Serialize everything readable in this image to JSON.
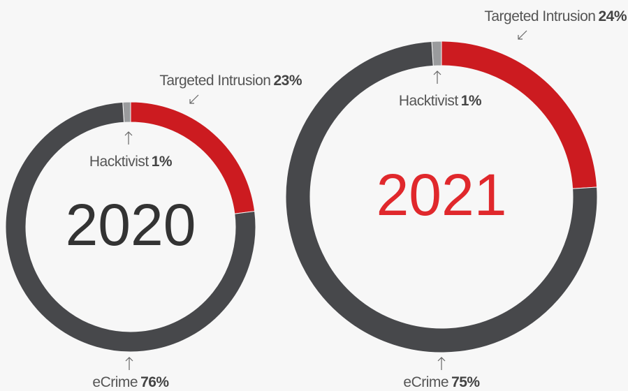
{
  "chart_data": [
    {
      "type": "donut",
      "title": "2020",
      "title_color": "#333333",
      "categories": [
        "Hacktivist",
        "Targeted Intrusion",
        "eCrime"
      ],
      "values": [
        1,
        23,
        76
      ],
      "value_labels": [
        "1%",
        "23%",
        "76%"
      ],
      "colors": [
        "#9a9b9d",
        "#cc1b20",
        "#47484b"
      ]
    },
    {
      "type": "donut",
      "title": "2021",
      "title_color": "#e0282c",
      "categories": [
        "Hacktivist",
        "Targeted Intrusion",
        "eCrime"
      ],
      "values": [
        1,
        24,
        75
      ],
      "value_labels": [
        "1%",
        "24%",
        "75%"
      ],
      "colors": [
        "#9a9b9d",
        "#cc1b20",
        "#47484b"
      ]
    }
  ]
}
